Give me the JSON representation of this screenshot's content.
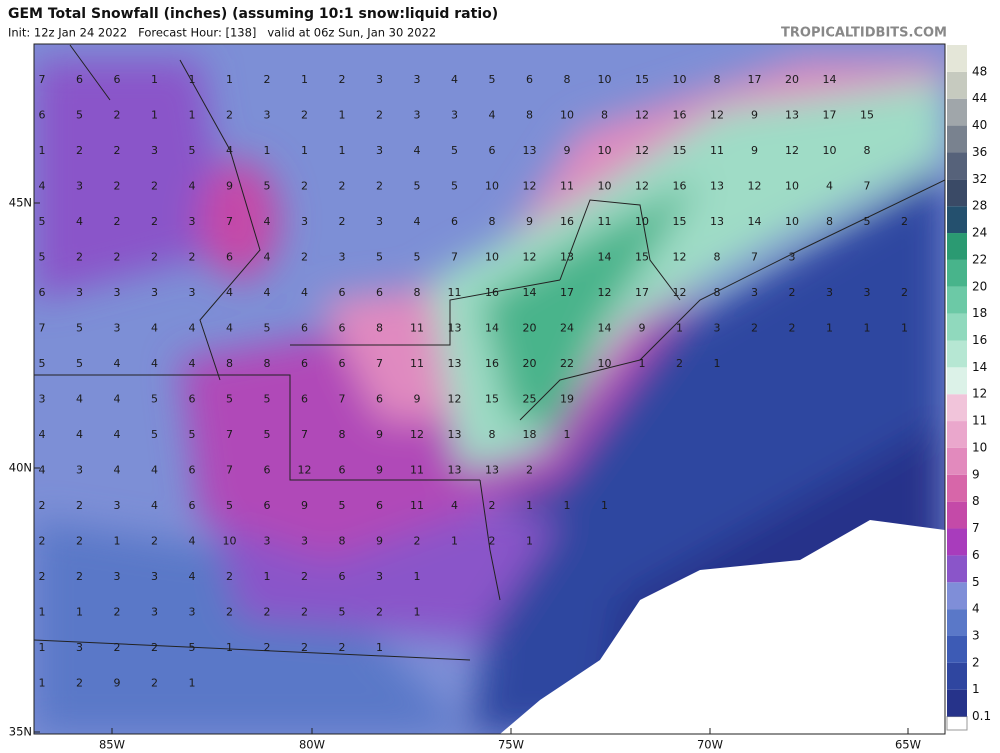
{
  "header": {
    "title": "GEM Total Snowfall (inches) (assuming 10:1 snow:liquid ratio)",
    "subtitle": "Init: 12z Jan 24 2022   Forecast Hour: [138]   valid at 06z Sun, Jan 30 2022",
    "site": "TROPICALTIDBITS.COM"
  },
  "map": {
    "lat_labels": [
      "45N",
      "40N",
      "35N"
    ],
    "lon_labels": [
      "85W",
      "80W",
      "75W",
      "70W",
      "65W"
    ],
    "grid_values": [
      [
        7,
        6,
        6,
        1,
        1,
        1,
        2,
        1,
        2,
        3,
        3,
        4,
        5,
        6,
        8,
        10,
        15,
        10,
        8,
        17,
        20,
        14
      ],
      [
        6,
        5,
        2,
        1,
        1,
        2,
        3,
        2,
        1,
        2,
        3,
        3,
        4,
        8,
        10,
        8,
        12,
        16,
        12,
        9,
        13,
        17,
        15
      ],
      [
        1,
        2,
        2,
        3,
        5,
        4,
        1,
        1,
        1,
        3,
        4,
        5,
        6,
        13,
        9,
        10,
        12,
        15,
        11,
        9,
        12,
        10,
        8
      ],
      [
        4,
        3,
        2,
        2,
        4,
        9,
        5,
        2,
        2,
        2,
        5,
        5,
        10,
        12,
        11,
        10,
        12,
        16,
        13,
        12,
        10,
        4,
        7
      ],
      [
        5,
        4,
        2,
        2,
        3,
        7,
        4,
        3,
        2,
        3,
        4,
        6,
        8,
        9,
        16,
        11,
        10,
        15,
        13,
        14,
        10,
        8,
        5,
        2
      ],
      [
        5,
        2,
        2,
        2,
        2,
        6,
        4,
        2,
        3,
        5,
        5,
        7,
        10,
        12,
        13,
        14,
        15,
        12,
        8,
        7,
        3
      ],
      [
        6,
        3,
        3,
        3,
        3,
        4,
        4,
        4,
        6,
        6,
        8,
        11,
        16,
        14,
        17,
        12,
        17,
        12,
        8,
        3,
        2,
        3,
        3,
        2
      ],
      [
        7,
        5,
        3,
        4,
        4,
        4,
        5,
        6,
        6,
        8,
        11,
        13,
        14,
        20,
        24,
        14,
        9,
        1,
        3,
        2,
        2,
        1,
        1,
        1
      ],
      [
        5,
        5,
        4,
        4,
        4,
        8,
        8,
        6,
        6,
        7,
        11,
        13,
        16,
        20,
        22,
        10,
        1,
        2,
        1
      ],
      [
        3,
        4,
        4,
        5,
        6,
        5,
        5,
        6,
        7,
        6,
        9,
        12,
        15,
        25,
        19
      ],
      [
        4,
        4,
        4,
        5,
        5,
        7,
        5,
        7,
        8,
        9,
        12,
        13,
        8,
        18,
        1
      ],
      [
        4,
        3,
        4,
        4,
        6,
        7,
        6,
        12,
        6,
        9,
        11,
        13,
        13,
        2
      ],
      [
        2,
        2,
        3,
        4,
        6,
        5,
        6,
        9,
        5,
        6,
        11,
        4,
        2,
        1,
        1,
        1
      ],
      [
        2,
        2,
        1,
        2,
        4,
        10,
        3,
        3,
        8,
        9,
        2,
        1,
        2,
        1
      ],
      [
        2,
        2,
        3,
        3,
        4,
        2,
        1,
        2,
        6,
        3,
        1
      ],
      [
        1,
        1,
        2,
        3,
        3,
        2,
        2,
        2,
        5,
        2,
        1
      ],
      [
        1,
        3,
        2,
        2,
        5,
        1,
        2,
        2,
        2,
        1
      ],
      [
        1,
        2,
        9,
        2,
        1
      ]
    ]
  },
  "colorbar": {
    "levels": [
      0.1,
      1,
      2,
      3,
      4,
      5,
      6,
      7,
      8,
      9,
      10,
      11,
      12,
      14,
      16,
      18,
      20,
      22,
      24,
      28,
      32,
      36,
      40,
      44,
      48
    ],
    "colors": [
      "#26338a",
      "#2f46a0",
      "#3d5bb5",
      "#5a78c8",
      "#7f8ed8",
      "#8a55c9",
      "#a83cbc",
      "#c44aa8",
      "#d766a9",
      "#e28abd",
      "#eaa7cc",
      "#f1c4da",
      "#dcf2e8",
      "#b6e7d3",
      "#90d9bd",
      "#6cc9a6",
      "#48b48b",
      "#2b9a72",
      "#24506e",
      "#3a4a66",
      "#56627a",
      "#79828f",
      "#a0a6aa",
      "#c6cabf",
      "#e4e6d8"
    ]
  }
}
